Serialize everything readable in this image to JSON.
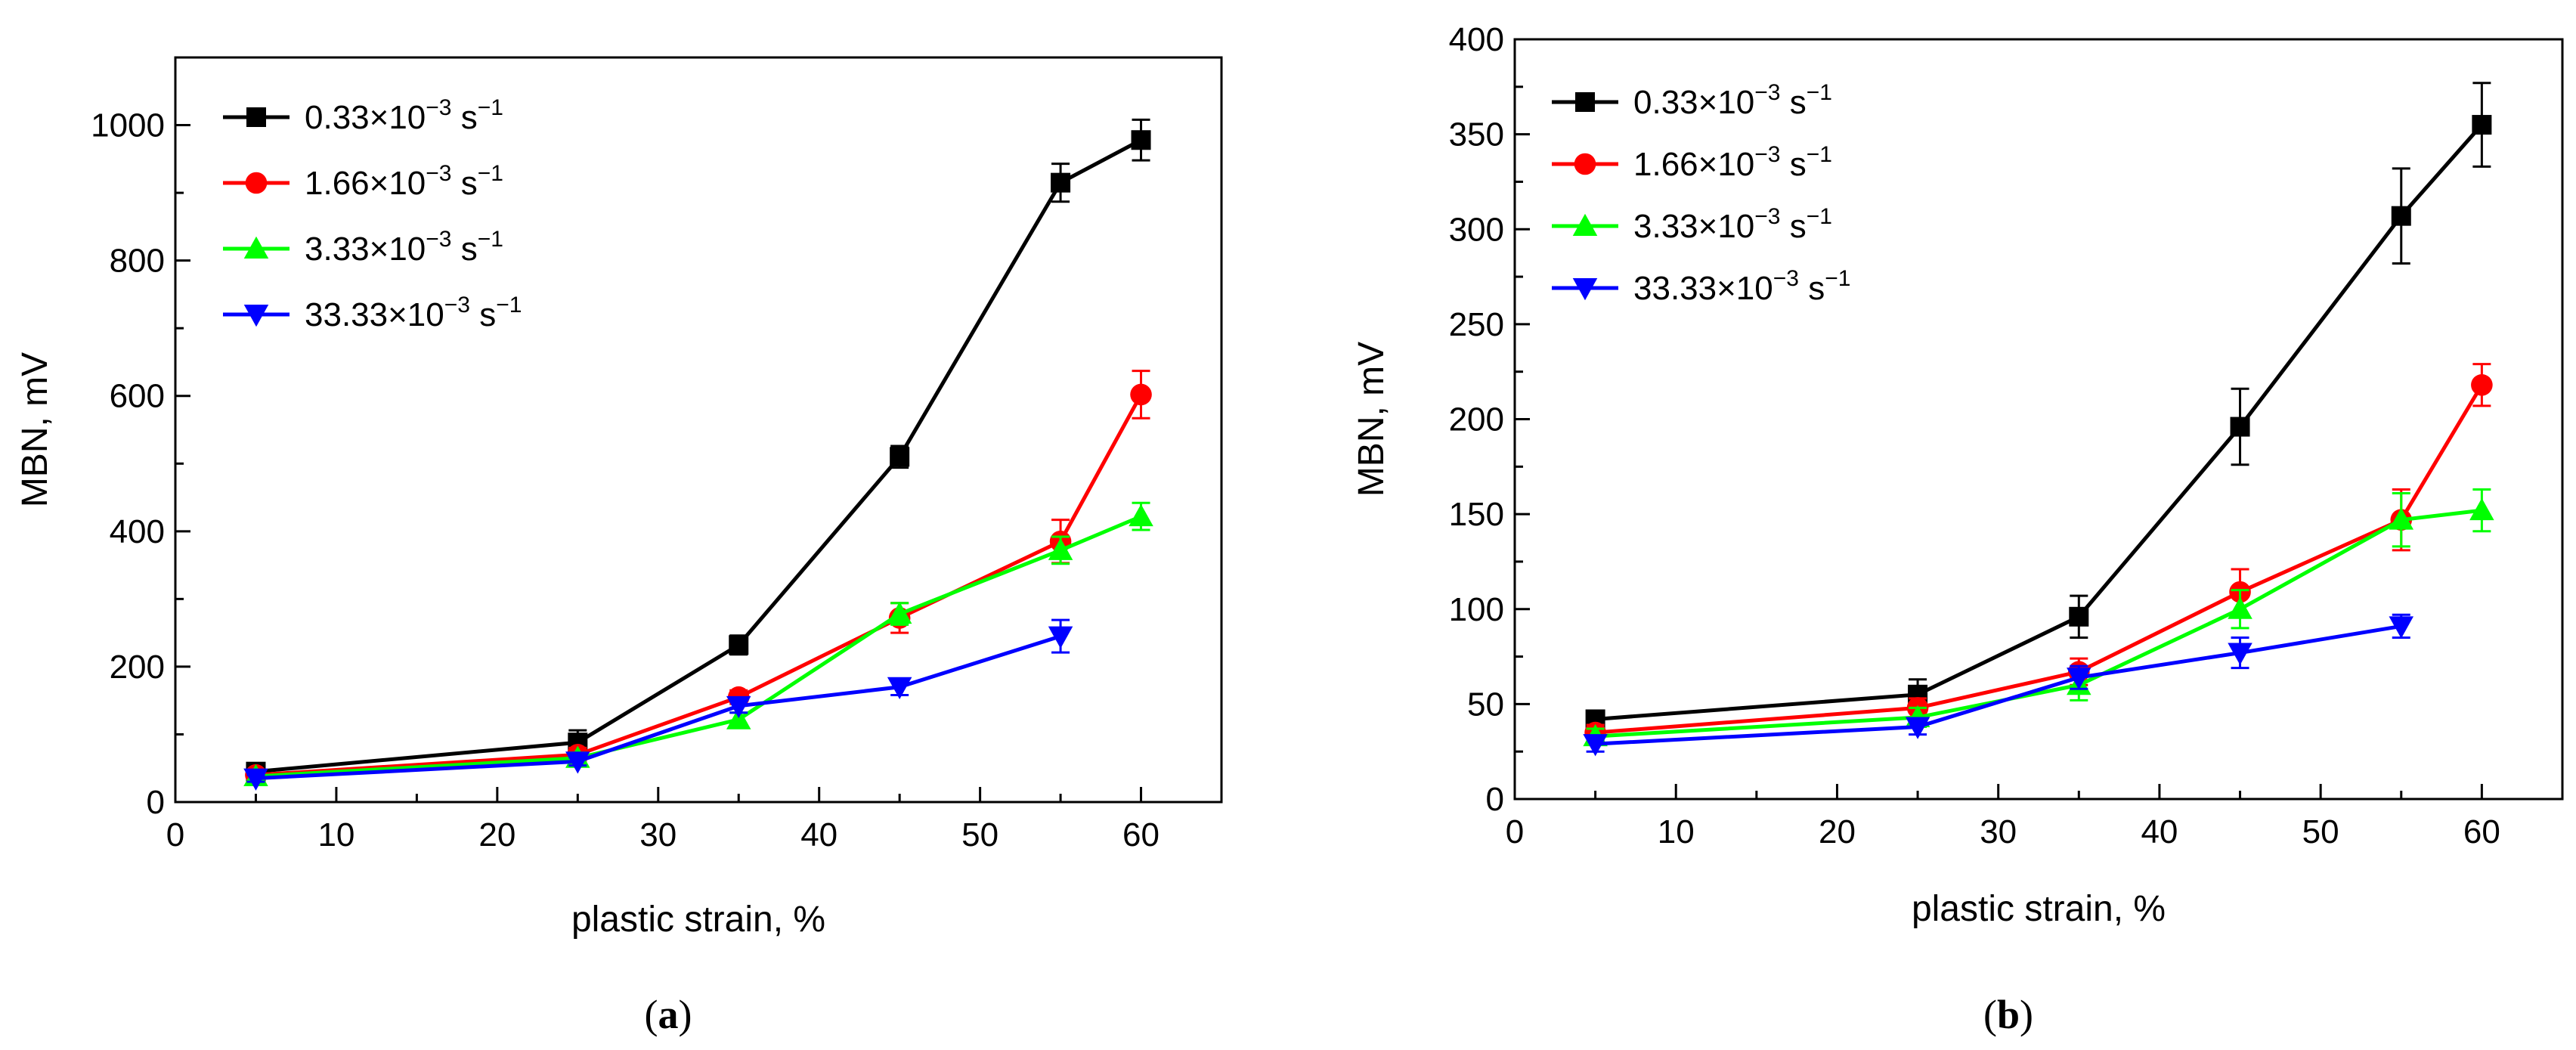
{
  "figure": {
    "colors": {
      "black": "#000000",
      "red": "#ff0000",
      "green": "#00ff00",
      "blue": "#0000ff"
    }
  },
  "chart_data": [
    {
      "type": "line",
      "panel_label": "(a)",
      "panel_letter": "a",
      "xlabel": "plastic strain, %",
      "ylabel": "MBN, mV",
      "xlim": [
        0,
        65
      ],
      "ylim": [
        0,
        1100
      ],
      "xticks": [
        0,
        10,
        20,
        30,
        40,
        50,
        60
      ],
      "yticks": [
        0,
        200,
        400,
        600,
        800,
        1000
      ],
      "legend_position": "top-left",
      "series": [
        {
          "name": "0.33×10",
          "exp": "−3",
          "unit": " s",
          "unit_exp": "−1",
          "marker": "square",
          "color": "#000000",
          "x": [
            5,
            25,
            35,
            45,
            55,
            60
          ],
          "y": [
            45,
            88,
            232,
            510,
            915,
            978
          ],
          "err": [
            8,
            18,
            14,
            16,
            28,
            30
          ]
        },
        {
          "name": "1.66×10",
          "exp": "−3",
          "unit": " s",
          "unit_exp": "−1",
          "marker": "circle",
          "color": "#ff0000",
          "x": [
            5,
            25,
            35,
            45,
            55,
            60
          ],
          "y": [
            40,
            70,
            155,
            272,
            385,
            602
          ],
          "err": [
            6,
            10,
            10,
            22,
            32,
            35
          ]
        },
        {
          "name": "3.33×10",
          "exp": "−3",
          "unit": " s",
          "unit_exp": "−1",
          "marker": "triangle-up",
          "color": "#00ff00",
          "x": [
            5,
            25,
            35,
            45,
            55,
            60
          ],
          "y": [
            38,
            65,
            122,
            278,
            372,
            422
          ],
          "err": [
            6,
            8,
            10,
            16,
            20,
            20
          ]
        },
        {
          "name": "33.33×10",
          "exp": "−3",
          "unit": " s",
          "unit_exp": "−1",
          "marker": "triangle-down",
          "color": "#0000ff",
          "x": [
            5,
            25,
            35,
            45,
            55
          ],
          "y": [
            35,
            60,
            142,
            170,
            245
          ],
          "err": [
            5,
            6,
            10,
            12,
            24
          ]
        }
      ]
    },
    {
      "type": "line",
      "panel_label": "(b)",
      "panel_letter": "b",
      "xlabel": "plastic strain, %",
      "ylabel": "MBN, mV",
      "xlim": [
        0,
        65
      ],
      "ylim": [
        0,
        400
      ],
      "xticks": [
        0,
        10,
        20,
        30,
        40,
        50,
        60
      ],
      "yticks": [
        0,
        50,
        100,
        150,
        200,
        250,
        300,
        350,
        400
      ],
      "legend_position": "top-left",
      "series": [
        {
          "name": "0.33×10",
          "exp": "−3",
          "unit": " s",
          "unit_exp": "−1",
          "marker": "square",
          "color": "#000000",
          "x": [
            5,
            25,
            35,
            45,
            55,
            60
          ],
          "y": [
            42,
            55,
            96,
            196,
            307,
            355
          ],
          "err": [
            4,
            8,
            11,
            20,
            25,
            22
          ]
        },
        {
          "name": "1.66×10",
          "exp": "−3",
          "unit": " s",
          "unit_exp": "−1",
          "marker": "circle",
          "color": "#ff0000",
          "x": [
            5,
            25,
            35,
            45,
            55,
            60
          ],
          "y": [
            35,
            48,
            67,
            109,
            147,
            218
          ],
          "err": [
            4,
            5,
            7,
            12,
            16,
            11
          ]
        },
        {
          "name": "3.33×10",
          "exp": "−3",
          "unit": " s",
          "unit_exp": "−1",
          "marker": "triangle-up",
          "color": "#00ff00",
          "x": [
            5,
            25,
            35,
            45,
            55,
            60
          ],
          "y": [
            33,
            43,
            60,
            100,
            147,
            152
          ],
          "err": [
            4,
            5,
            8,
            10,
            14,
            11
          ]
        },
        {
          "name": "33.33×10",
          "exp": "−3",
          "unit": " s",
          "unit_exp": "−1",
          "marker": "triangle-down",
          "color": "#0000ff",
          "x": [
            5,
            25,
            35,
            45,
            55
          ],
          "y": [
            29,
            38,
            64,
            77,
            91
          ],
          "err": [
            4,
            4,
            6,
            8,
            6
          ]
        }
      ]
    }
  ]
}
